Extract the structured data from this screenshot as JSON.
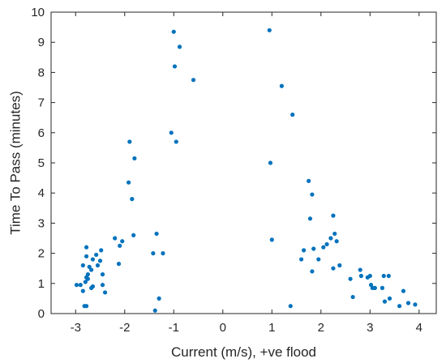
{
  "chart_data": {
    "type": "scatter",
    "xlabel": "Current (m/s), +ve flood",
    "ylabel": "Time To Pass (minutes)",
    "xlim": [
      -3.5,
      4.35
    ],
    "ylim": [
      0,
      10
    ],
    "xticks": [
      -3,
      -2,
      -1,
      0,
      1,
      2,
      3,
      4
    ],
    "xtick_labels": [
      "-3",
      "-2",
      "-1",
      "0",
      "1",
      "2",
      "3",
      "4"
    ],
    "yticks": [
      0,
      1,
      2,
      3,
      4,
      5,
      6,
      7,
      8,
      9,
      10
    ],
    "ytick_labels": [
      "0",
      "1",
      "2",
      "3",
      "4",
      "5",
      "6",
      "7",
      "8",
      "9",
      "10"
    ],
    "grid": false,
    "marker_color": "#0072BD",
    "points": [
      {
        "x": -2.98,
        "y": 0.95
      },
      {
        "x": -2.9,
        "y": 0.95
      },
      {
        "x": -2.85,
        "y": 0.75
      },
      {
        "x": -2.82,
        "y": 0.25
      },
      {
        "x": -2.78,
        "y": 0.25
      },
      {
        "x": -2.85,
        "y": 1.6
      },
      {
        "x": -2.8,
        "y": 1.05
      },
      {
        "x": -2.78,
        "y": 1.2
      },
      {
        "x": -2.75,
        "y": 1.15
      },
      {
        "x": -2.78,
        "y": 1.9
      },
      {
        "x": -2.78,
        "y": 2.2
      },
      {
        "x": -2.75,
        "y": 1.3
      },
      {
        "x": -2.72,
        "y": 1.55
      },
      {
        "x": -2.68,
        "y": 1.45
      },
      {
        "x": -2.68,
        "y": 0.85
      },
      {
        "x": -2.65,
        "y": 0.9
      },
      {
        "x": -2.65,
        "y": 1.8
      },
      {
        "x": -2.58,
        "y": 1.95
      },
      {
        "x": -2.55,
        "y": 1.6
      },
      {
        "x": -2.5,
        "y": 1.75
      },
      {
        "x": -2.48,
        "y": 2.1
      },
      {
        "x": -2.45,
        "y": 0.95
      },
      {
        "x": -2.45,
        "y": 1.3
      },
      {
        "x": -2.4,
        "y": 0.7
      },
      {
        "x": -2.2,
        "y": 2.5
      },
      {
        "x": -2.12,
        "y": 1.65
      },
      {
        "x": -2.1,
        "y": 2.25
      },
      {
        "x": -2.05,
        "y": 2.4
      },
      {
        "x": -1.92,
        "y": 4.35
      },
      {
        "x": -1.9,
        "y": 5.7
      },
      {
        "x": -1.85,
        "y": 3.8
      },
      {
        "x": -1.82,
        "y": 2.6
      },
      {
        "x": -1.8,
        "y": 5.15
      },
      {
        "x": -1.42,
        "y": 2.0
      },
      {
        "x": -1.38,
        "y": 0.1
      },
      {
        "x": -1.35,
        "y": 2.65
      },
      {
        "x": -1.3,
        "y": 0.5
      },
      {
        "x": -1.22,
        "y": 2.0
      },
      {
        "x": -1.05,
        "y": 6.0
      },
      {
        "x": -1.0,
        "y": 9.35
      },
      {
        "x": -0.98,
        "y": 8.2
      },
      {
        "x": -0.95,
        "y": 5.7
      },
      {
        "x": -0.88,
        "y": 8.85
      },
      {
        "x": -0.6,
        "y": 7.75
      },
      {
        "x": 0.95,
        "y": 9.4
      },
      {
        "x": 0.97,
        "y": 5.0
      },
      {
        "x": 1.0,
        "y": 2.45
      },
      {
        "x": 1.2,
        "y": 7.55
      },
      {
        "x": 1.38,
        "y": 0.25
      },
      {
        "x": 1.42,
        "y": 6.6
      },
      {
        "x": 1.6,
        "y": 1.8
      },
      {
        "x": 1.65,
        "y": 2.1
      },
      {
        "x": 1.75,
        "y": 4.4
      },
      {
        "x": 1.78,
        "y": 3.15
      },
      {
        "x": 1.82,
        "y": 3.95
      },
      {
        "x": 1.82,
        "y": 1.4
      },
      {
        "x": 1.85,
        "y": 2.15
      },
      {
        "x": 1.95,
        "y": 1.8
      },
      {
        "x": 2.05,
        "y": 2.2
      },
      {
        "x": 2.12,
        "y": 2.3
      },
      {
        "x": 2.2,
        "y": 2.5
      },
      {
        "x": 2.25,
        "y": 1.5
      },
      {
        "x": 2.25,
        "y": 3.25
      },
      {
        "x": 2.28,
        "y": 2.65
      },
      {
        "x": 2.32,
        "y": 2.4
      },
      {
        "x": 2.38,
        "y": 1.6
      },
      {
        "x": 2.6,
        "y": 1.15
      },
      {
        "x": 2.65,
        "y": 0.55
      },
      {
        "x": 2.8,
        "y": 1.45
      },
      {
        "x": 2.82,
        "y": 1.25
      },
      {
        "x": 2.95,
        "y": 1.2
      },
      {
        "x": 3.0,
        "y": 1.25
      },
      {
        "x": 3.02,
        "y": 0.95
      },
      {
        "x": 3.05,
        "y": 0.85
      },
      {
        "x": 3.1,
        "y": 0.85
      },
      {
        "x": 3.25,
        "y": 0.85
      },
      {
        "x": 3.28,
        "y": 1.25
      },
      {
        "x": 3.3,
        "y": 0.4
      },
      {
        "x": 3.38,
        "y": 1.25
      },
      {
        "x": 3.4,
        "y": 0.5
      },
      {
        "x": 3.6,
        "y": 0.25
      },
      {
        "x": 3.68,
        "y": 0.75
      },
      {
        "x": 3.78,
        "y": 0.35
      },
      {
        "x": 3.92,
        "y": 0.3
      }
    ]
  }
}
